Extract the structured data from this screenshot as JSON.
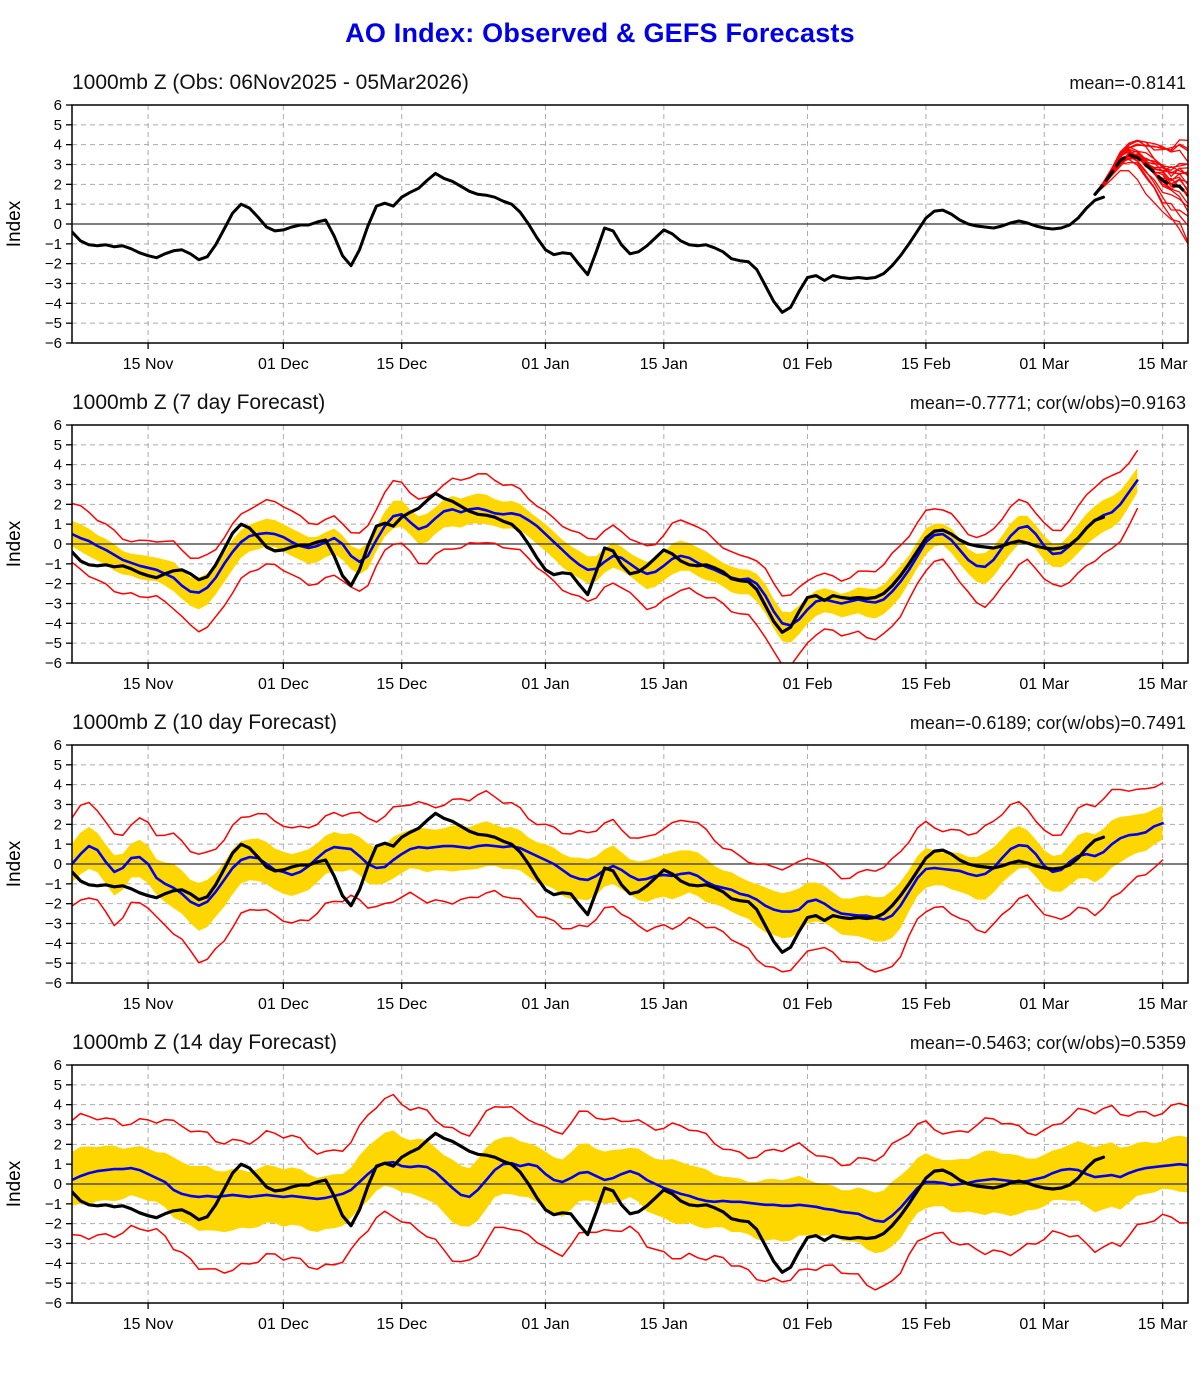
{
  "title": {
    "text": "AO Index: Observed & GEFS Forecasts"
  },
  "colors": {
    "title": "#0000e6",
    "observed_line": "#000000",
    "forecast_mean_line": "#0000ee",
    "ensemble_member_line": "#ff0000",
    "spread_band": "#ffd700",
    "grid": "#aaaaaa",
    "zero_line": "#333333"
  },
  "axis": {
    "ylabel": "Index",
    "ylim": [
      -6,
      6
    ],
    "yticks": [
      "6",
      "5",
      "4",
      "3",
      "2",
      "1",
      "0",
      "−1",
      "−2",
      "−3",
      "−4",
      "−5",
      "−6"
    ],
    "ytick_values": [
      6,
      5,
      4,
      3,
      2,
      1,
      0,
      -1,
      -2,
      -3,
      -4,
      -5,
      -6
    ],
    "grid": "dashed",
    "day_max": 132,
    "xticks": [
      {
        "day": 9,
        "label": "15 Nov"
      },
      {
        "day": 25,
        "label": "01 Dec"
      },
      {
        "day": 39,
        "label": "15 Dec"
      },
      {
        "day": 56,
        "label": "01 Jan"
      },
      {
        "day": 70,
        "label": "15 Jan"
      },
      {
        "day": 87,
        "label": "01 Feb"
      },
      {
        "day": 101,
        "label": "15 Feb"
      },
      {
        "day": 115,
        "label": "01 Mar"
      },
      {
        "day": 129,
        "label": "15 Mar"
      }
    ]
  },
  "chart_data": [
    {
      "type": "line",
      "id": "obs",
      "title": "1000mb Z (Obs: 06Nov2025 - 05Mar2026)",
      "stats": "mean=-0.8141",
      "observed": {
        "start_day": 0,
        "values": [
          -0.4,
          -0.85,
          -1.05,
          -1.1,
          -1.05,
          -1.15,
          -1.1,
          -1.25,
          -1.45,
          -1.6,
          -1.7,
          -1.5,
          -1.35,
          -1.3,
          -1.5,
          -1.8,
          -1.65,
          -1.05,
          -0.25,
          0.55,
          1.0,
          0.8,
          0.35,
          -0.15,
          -0.35,
          -0.3,
          -0.15,
          -0.05,
          -0.05,
          0.1,
          0.2,
          -0.6,
          -1.6,
          -2.1,
          -1.3,
          -0.1,
          0.9,
          1.05,
          0.9,
          1.35,
          1.6,
          1.8,
          2.2,
          2.55,
          2.3,
          2.15,
          1.9,
          1.65,
          1.5,
          1.45,
          1.35,
          1.15,
          1.0,
          0.6,
          0.0,
          -0.7,
          -1.3,
          -1.55,
          -1.45,
          -1.5,
          -2.05,
          -2.55,
          -1.4,
          -0.2,
          -0.35,
          -1.05,
          -1.5,
          -1.4,
          -1.1,
          -0.7,
          -0.3,
          -0.5,
          -0.85,
          -1.05,
          -1.1,
          -1.05,
          -1.2,
          -1.4,
          -1.75,
          -1.85,
          -1.9,
          -2.3,
          -3.1,
          -3.9,
          -4.45,
          -4.2,
          -3.4,
          -2.7,
          -2.6,
          -2.85,
          -2.6,
          -2.7,
          -2.75,
          -2.7,
          -2.75,
          -2.7,
          -2.5,
          -2.1,
          -1.6,
          -1.0,
          -0.35,
          0.3,
          0.65,
          0.7,
          0.5,
          0.2,
          0.0,
          -0.1,
          -0.15,
          -0.2,
          -0.1,
          0.05,
          0.15,
          0.05,
          -0.1,
          -0.2,
          -0.25,
          -0.2,
          -0.05,
          0.3,
          0.8,
          1.2,
          1.35
        ]
      },
      "ensemble_mean": {
        "start_day": 121,
        "values": [
          1.5,
          2.0,
          2.6,
          3.2,
          3.5,
          3.35,
          3.0,
          2.6,
          2.2,
          1.95,
          1.9,
          1.45,
          1.05
        ]
      },
      "ensemble": {
        "members": 25,
        "spread_start": 0.3,
        "spread_end": 1.8
      }
    },
    {
      "type": "line",
      "id": "f7",
      "title": "1000mb Z (7 day Forecast)",
      "stats": "mean=-0.7771; cor(w/obs)=0.9163",
      "forecast_mean": {
        "start_day": 0,
        "values": [
          0.5,
          0.3,
          0.15,
          -0.1,
          -0.3,
          -0.55,
          -0.8,
          -0.95,
          -1.1,
          -1.2,
          -1.3,
          -1.5,
          -1.7,
          -2.1,
          -2.4,
          -2.45,
          -2.2,
          -1.7,
          -1.0,
          -0.4,
          0.1,
          0.4,
          0.5,
          0.55,
          0.5,
          0.35,
          0.1,
          -0.1,
          -0.2,
          -0.1,
          0.1,
          0.3,
          0.0,
          -0.6,
          -0.9,
          -0.6,
          0.2,
          0.9,
          1.4,
          1.5,
          1.1,
          0.75,
          0.9,
          1.3,
          1.65,
          1.75,
          1.6,
          1.75,
          1.8,
          1.7,
          1.55,
          1.5,
          1.55,
          1.45,
          1.2,
          0.9,
          0.5,
          0.1,
          -0.3,
          -0.7,
          -1.05,
          -1.3,
          -1.25,
          -0.9,
          -0.6,
          -0.7,
          -1.0,
          -1.3,
          -1.5,
          -1.4,
          -1.1,
          -0.75,
          -0.6,
          -0.7,
          -0.95,
          -1.15,
          -1.3,
          -1.5,
          -1.7,
          -1.8,
          -1.75,
          -2.0,
          -2.6,
          -3.4,
          -4.0,
          -4.1,
          -3.8,
          -3.3,
          -2.9,
          -2.8,
          -2.9,
          -3.0,
          -2.9,
          -2.8,
          -2.9,
          -2.95,
          -2.8,
          -2.4,
          -1.9,
          -1.3,
          -0.6,
          0.1,
          0.45,
          0.5,
          0.2,
          -0.3,
          -0.8,
          -1.1,
          -1.15,
          -0.8,
          -0.2,
          0.4,
          0.8,
          0.9,
          0.5,
          -0.1,
          -0.5,
          -0.45,
          -0.1,
          0.3,
          0.8,
          1.2,
          1.45,
          1.6,
          2.0,
          2.6,
          3.2
        ]
      },
      "envelope": {
        "up": 1.45,
        "dn": 1.7,
        "amp": 0.4,
        "yfrac": 0.43
      }
    },
    {
      "type": "line",
      "id": "f10",
      "title": "1000mb Z (10 day Forecast)",
      "stats": "mean=-0.6189; cor(w/obs)=0.7491",
      "forecast_mean": {
        "start_day": 0,
        "values": [
          0.0,
          0.5,
          0.9,
          0.7,
          0.1,
          -0.4,
          -0.2,
          0.3,
          0.35,
          0.0,
          -0.7,
          -1.0,
          -1.2,
          -1.5,
          -1.9,
          -2.1,
          -1.9,
          -1.4,
          -0.8,
          -0.2,
          0.2,
          0.35,
          0.3,
          0.0,
          -0.3,
          -0.4,
          -0.55,
          -0.4,
          -0.1,
          0.3,
          0.65,
          0.85,
          0.8,
          0.75,
          0.4,
          0.0,
          -0.2,
          -0.15,
          0.2,
          0.5,
          0.75,
          0.85,
          0.8,
          0.85,
          0.9,
          0.9,
          0.85,
          0.8,
          0.9,
          0.95,
          0.9,
          0.85,
          0.9,
          0.8,
          0.6,
          0.4,
          0.2,
          0.0,
          -0.3,
          -0.6,
          -0.75,
          -0.8,
          -0.6,
          -0.3,
          -0.1,
          -0.3,
          -0.6,
          -0.8,
          -0.75,
          -0.6,
          -0.55,
          -0.6,
          -0.5,
          -0.45,
          -0.6,
          -0.9,
          -1.1,
          -1.2,
          -1.3,
          -1.5,
          -1.6,
          -1.8,
          -2.1,
          -2.3,
          -2.4,
          -2.4,
          -2.3,
          -1.9,
          -1.8,
          -2.0,
          -2.3,
          -2.5,
          -2.55,
          -2.6,
          -2.6,
          -2.7,
          -2.8,
          -2.6,
          -2.1,
          -1.4,
          -0.7,
          -0.25,
          -0.2,
          -0.25,
          -0.3,
          -0.35,
          -0.5,
          -0.6,
          -0.5,
          -0.2,
          0.3,
          0.75,
          0.95,
          0.9,
          0.5,
          -0.1,
          -0.4,
          -0.3,
          0.1,
          0.4,
          0.5,
          0.4,
          0.6,
          1.0,
          1.3,
          1.45,
          1.5,
          1.6,
          1.9,
          2.05
        ]
      },
      "envelope": {
        "up": 2.2,
        "dn": 2.5,
        "amp": 0.55,
        "yfrac": 0.44
      }
    },
    {
      "type": "line",
      "id": "f14",
      "title": "1000mb Z (14 day Forecast)",
      "stats": "mean=-0.5463; cor(w/obs)=0.5359",
      "forecast_mean": {
        "start_day": 0,
        "values": [
          0.2,
          0.4,
          0.55,
          0.65,
          0.7,
          0.75,
          0.75,
          0.8,
          0.7,
          0.5,
          0.3,
          0.1,
          -0.3,
          -0.5,
          -0.6,
          -0.65,
          -0.6,
          -0.65,
          -0.6,
          -0.55,
          -0.6,
          -0.65,
          -0.6,
          -0.55,
          -0.6,
          -0.65,
          -0.6,
          -0.65,
          -0.7,
          -0.75,
          -0.7,
          -0.6,
          -0.5,
          -0.3,
          0.1,
          0.5,
          0.85,
          1.05,
          1.1,
          0.9,
          0.85,
          0.9,
          0.85,
          0.6,
          0.2,
          -0.2,
          -0.55,
          -0.65,
          -0.3,
          0.2,
          0.7,
          1.0,
          1.05,
          0.9,
          1.0,
          0.9,
          0.5,
          0.2,
          0.1,
          0.3,
          0.55,
          0.6,
          0.4,
          0.2,
          0.3,
          0.5,
          0.65,
          0.5,
          0.2,
          0.0,
          -0.2,
          -0.35,
          -0.5,
          -0.6,
          -0.75,
          -0.85,
          -0.9,
          -0.85,
          -0.9,
          -0.9,
          -0.95,
          -1.0,
          -1.05,
          -1.05,
          -1.1,
          -1.1,
          -1.05,
          -1.1,
          -1.15,
          -1.25,
          -1.3,
          -1.4,
          -1.45,
          -1.5,
          -1.7,
          -1.85,
          -1.9,
          -1.6,
          -1.2,
          -0.7,
          -0.2,
          0.1,
          0.1,
          0.05,
          -0.05,
          0.0,
          0.05,
          0.15,
          0.2,
          0.25,
          0.2,
          0.15,
          0.1,
          0.15,
          0.25,
          0.35,
          0.55,
          0.7,
          0.75,
          0.7,
          0.5,
          0.35,
          0.4,
          0.45,
          0.35,
          0.55,
          0.7,
          0.8,
          0.85,
          0.9,
          0.95,
          1.0,
          0.95,
          0.95
        ]
      },
      "envelope": {
        "up": 2.85,
        "dn": 3.2,
        "amp": 0.65,
        "yfrac": 0.47
      }
    }
  ]
}
